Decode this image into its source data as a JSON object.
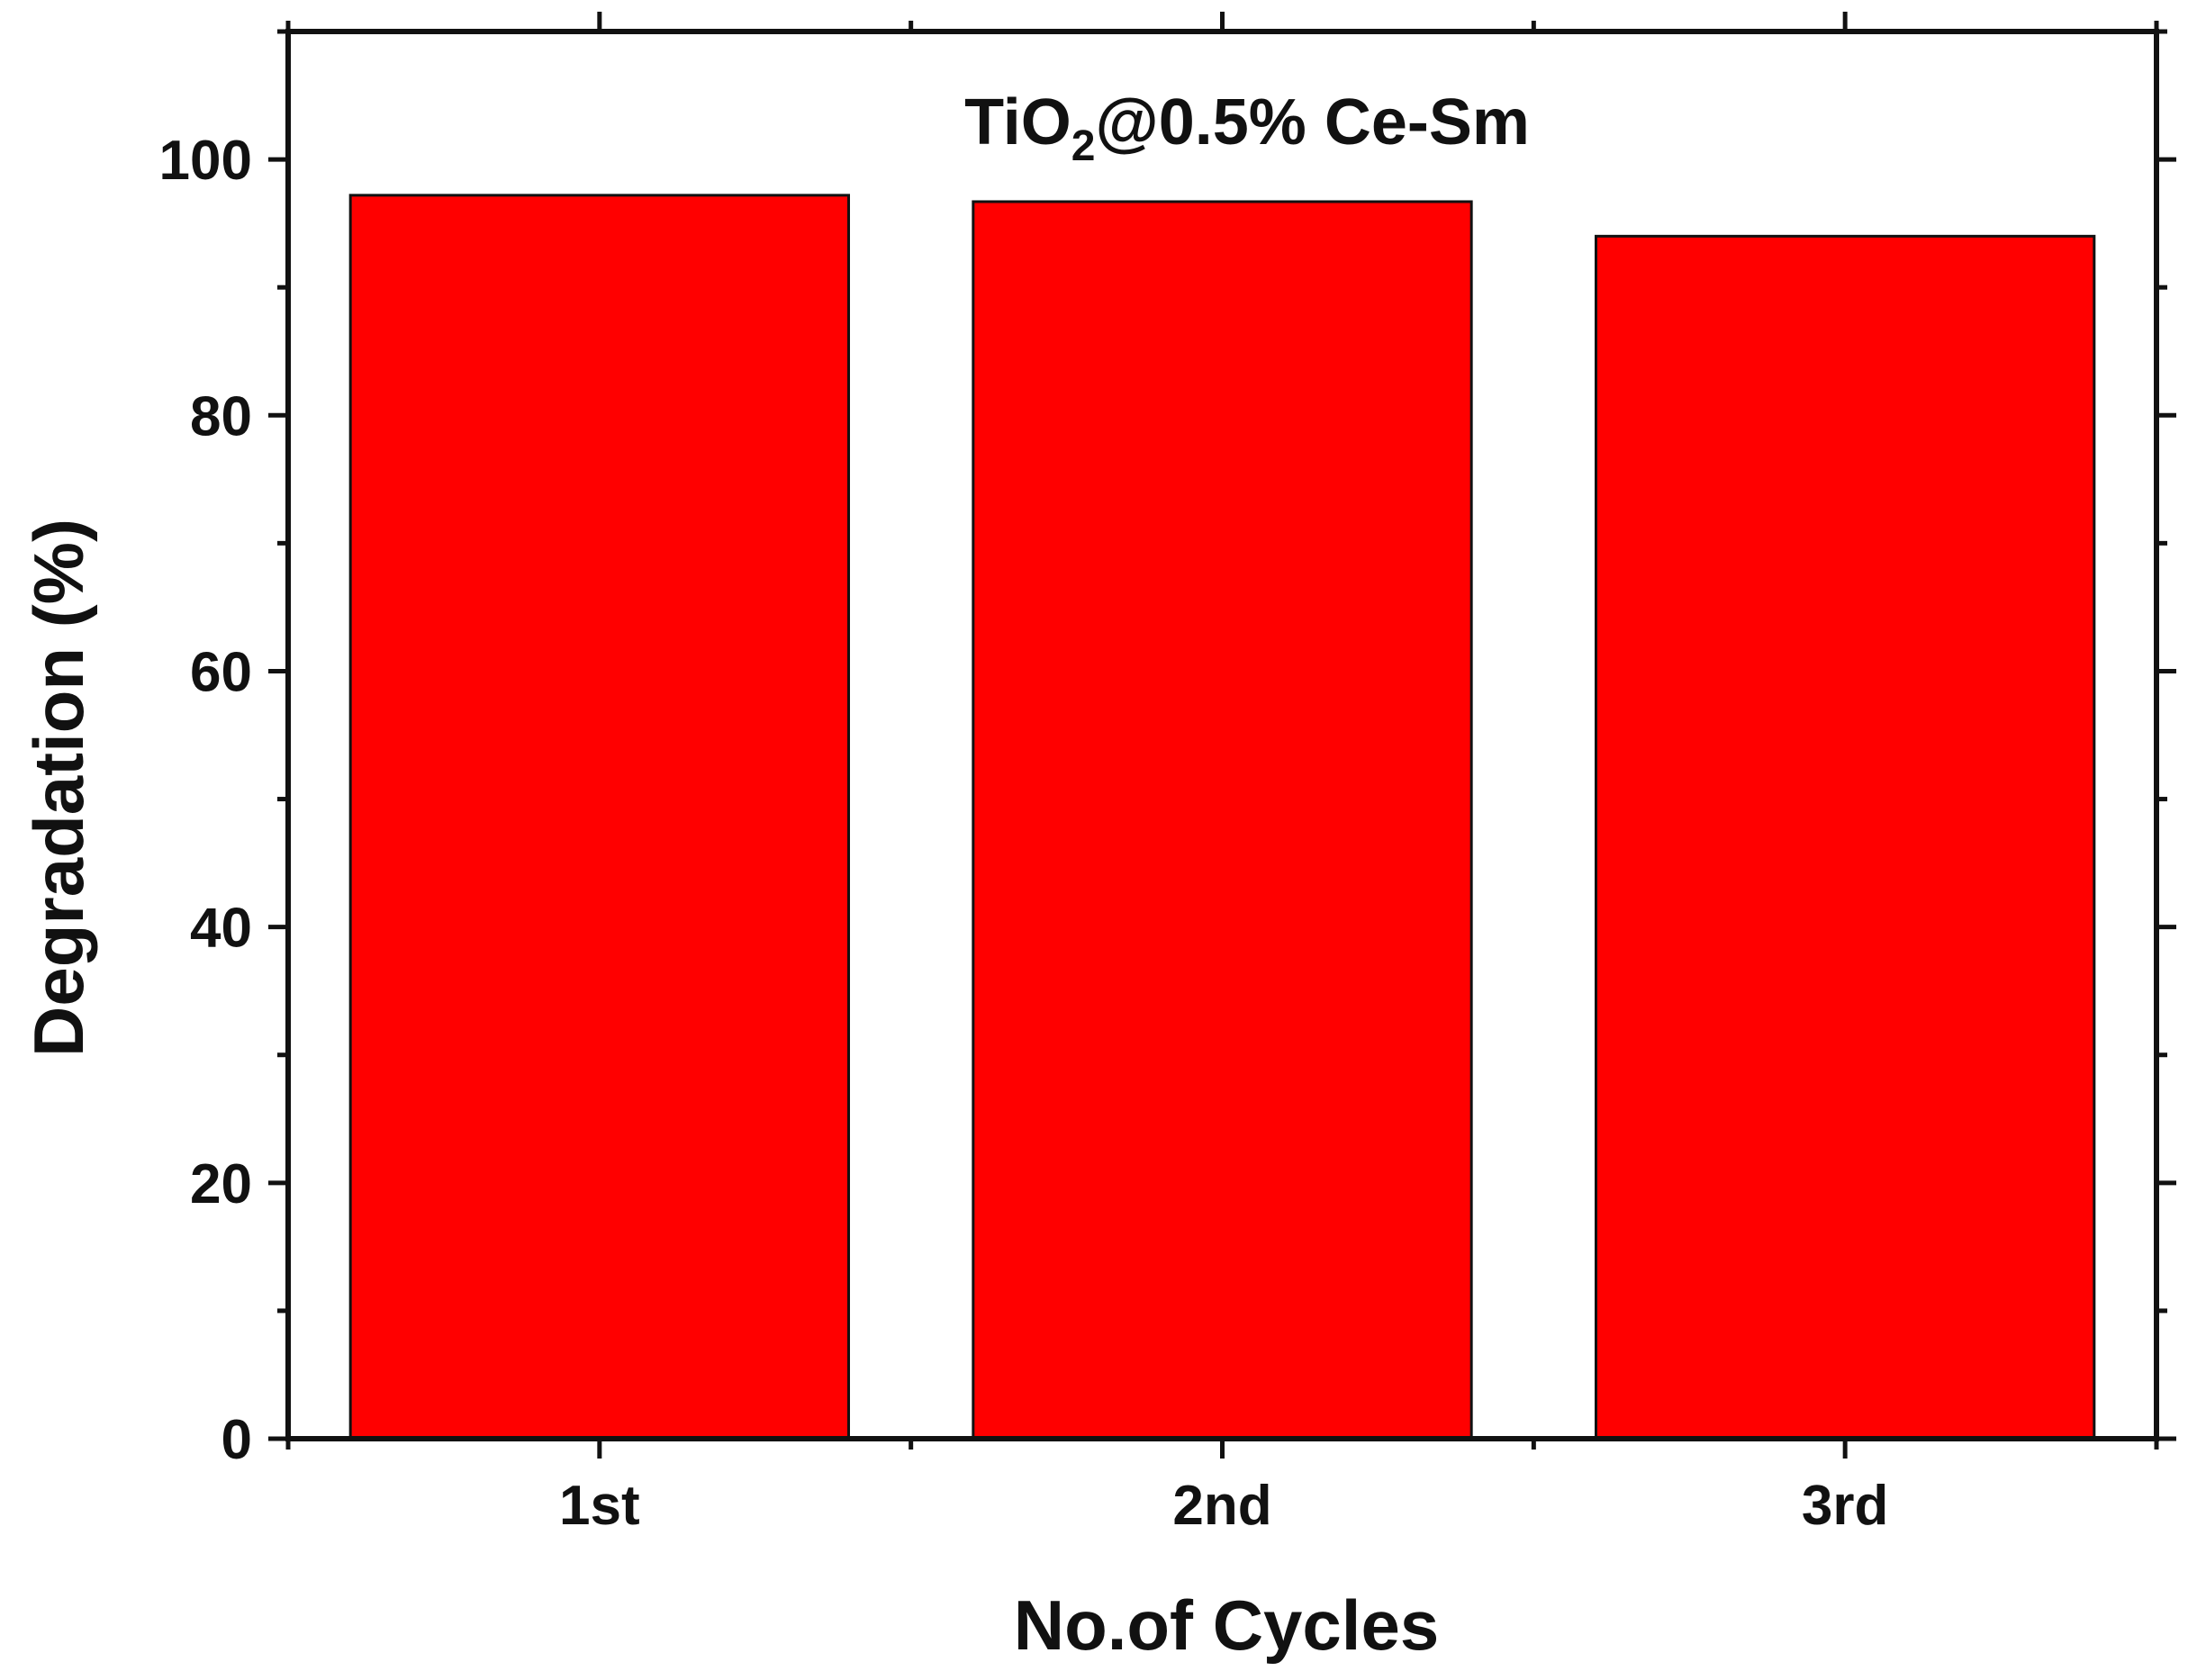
{
  "chart_data": {
    "type": "bar",
    "title_parts": [
      "TiO",
      "2",
      "@0.5% Ce-Sm"
    ],
    "categories": [
      "1st",
      "2nd",
      "3rd"
    ],
    "series": [
      {
        "values": [
          97.2,
          96.7,
          94.0
        ]
      }
    ],
    "xlabel": "No.of Cycles",
    "ylabel": "Degradation (%)",
    "ylim": [
      0,
      110
    ],
    "yticks": [
      "0",
      "20",
      "40",
      "60",
      "80",
      "100"
    ],
    "grid": false,
    "legend": "none",
    "colors": {
      "bar": "#ff0000",
      "bar_edge": "#111111",
      "axis": "#111111"
    }
  }
}
